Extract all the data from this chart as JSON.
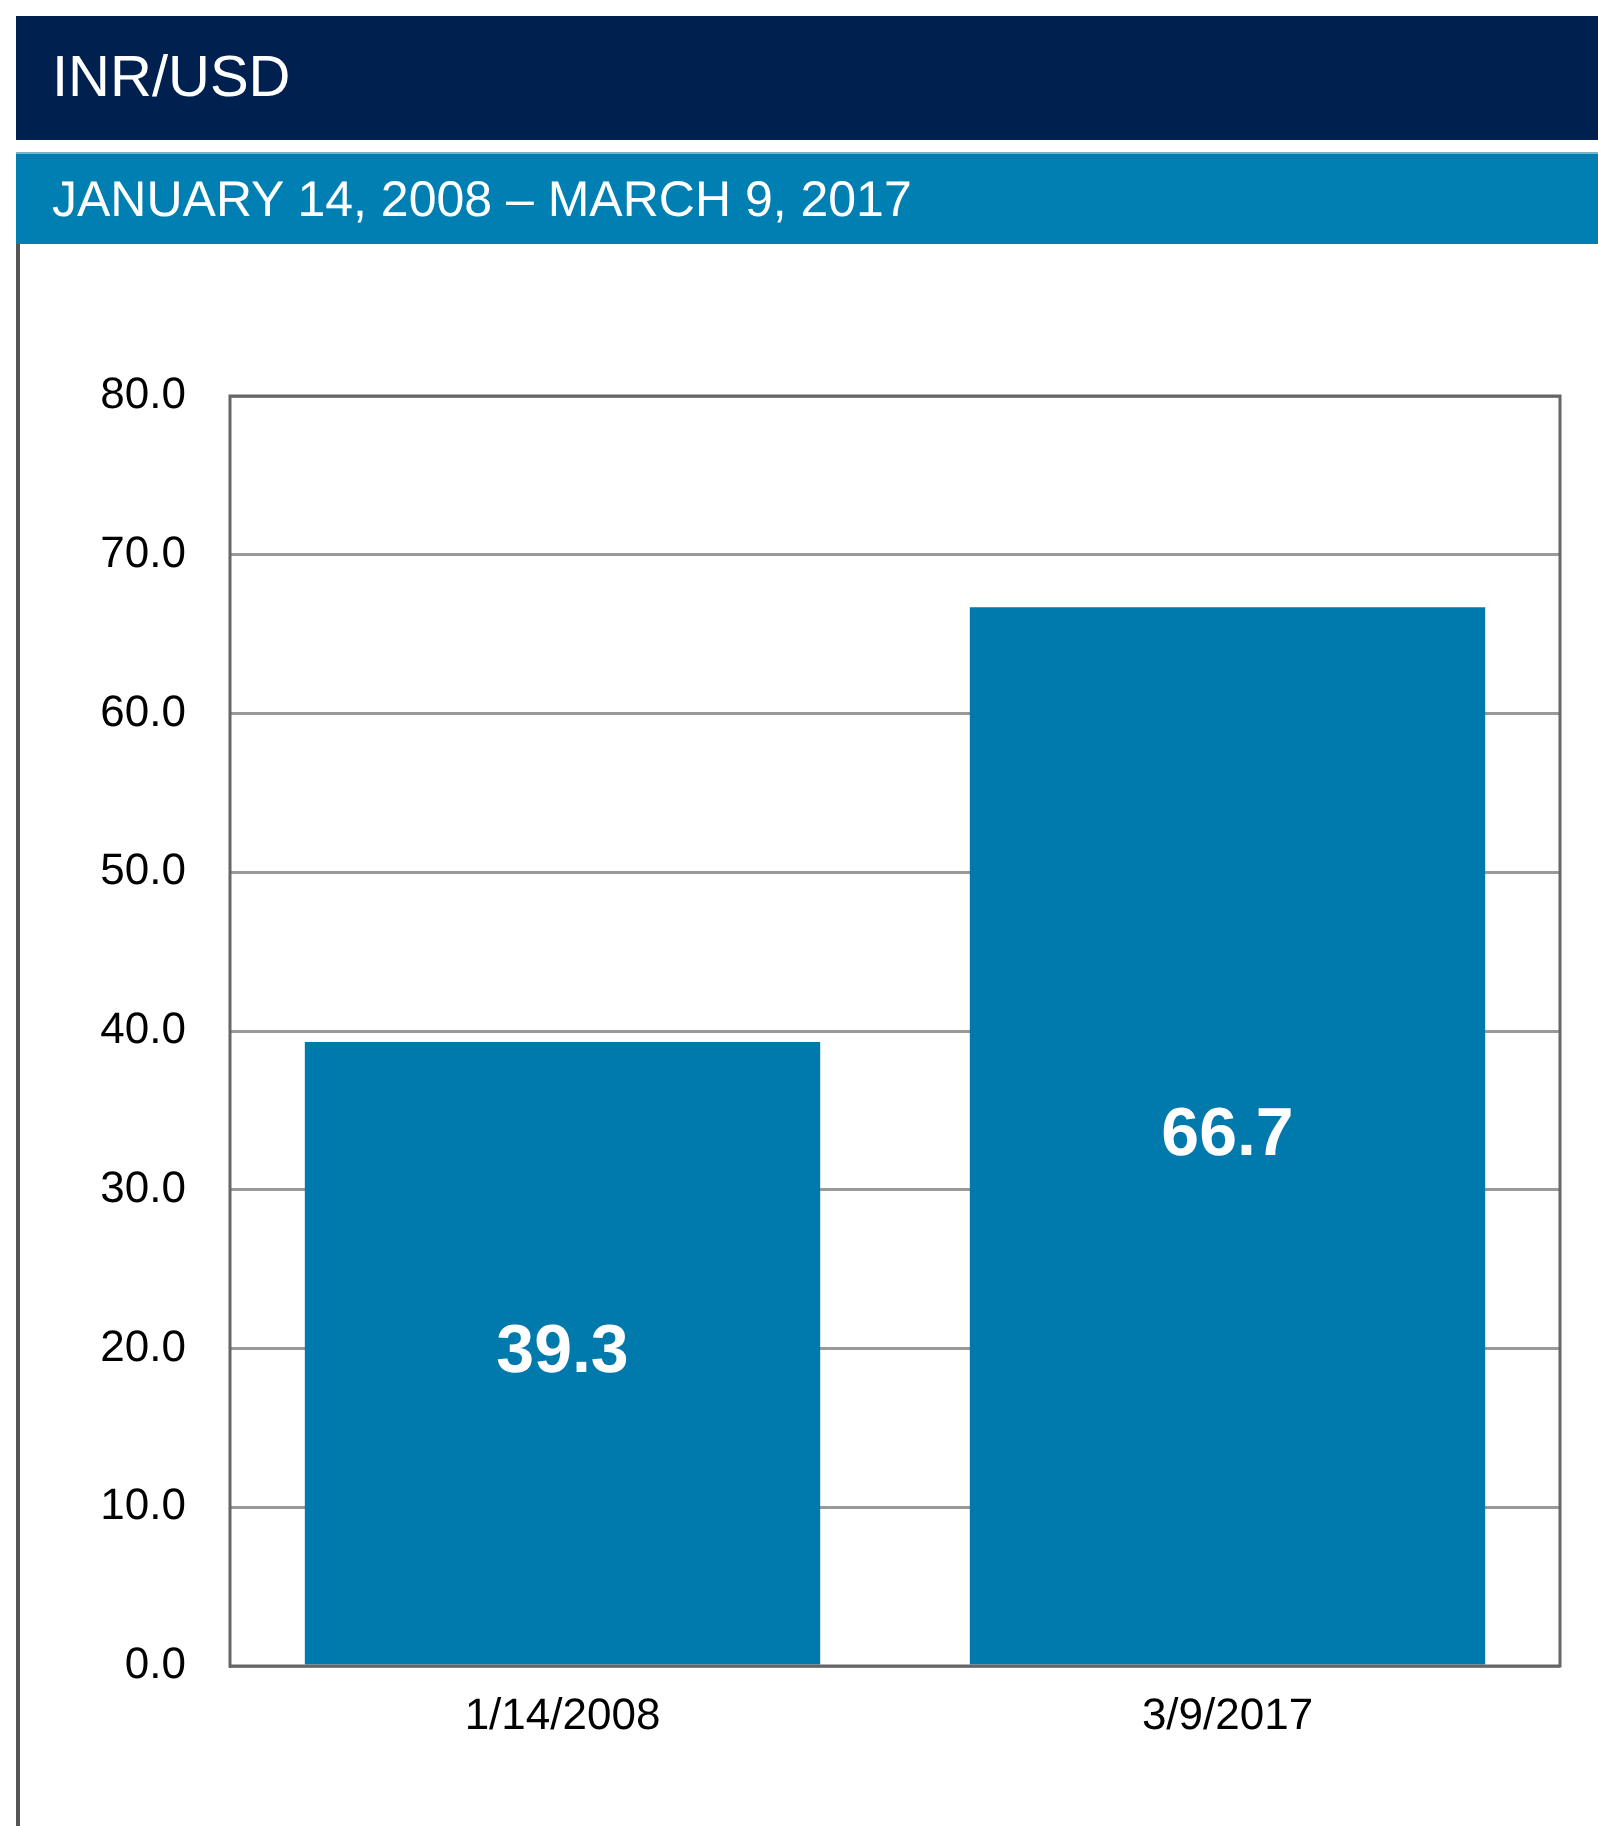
{
  "chart_data": {
    "type": "bar",
    "title": "INR/USD",
    "subtitle": "JANUARY 14, 2008 – MARCH 9, 2017",
    "categories": [
      "1/14/2008",
      "3/9/2017"
    ],
    "values": [
      39.3,
      66.7
    ],
    "color": "#0079ac",
    "ylim": [
      0,
      80
    ],
    "yticks": [
      {
        "value": 0,
        "label": "0.0"
      },
      {
        "value": 10,
        "label": "10.0"
      },
      {
        "value": 20,
        "label": "20.0"
      },
      {
        "value": 30,
        "label": "30.0"
      },
      {
        "value": 40,
        "label": "40.0"
      },
      {
        "value": 50,
        "label": "50.0"
      },
      {
        "value": 60,
        "label": "60.0"
      },
      {
        "value": 70,
        "label": "70.0"
      },
      {
        "value": 80,
        "label": "80.0"
      }
    ],
    "grid": "y",
    "data_labels": true
  }
}
